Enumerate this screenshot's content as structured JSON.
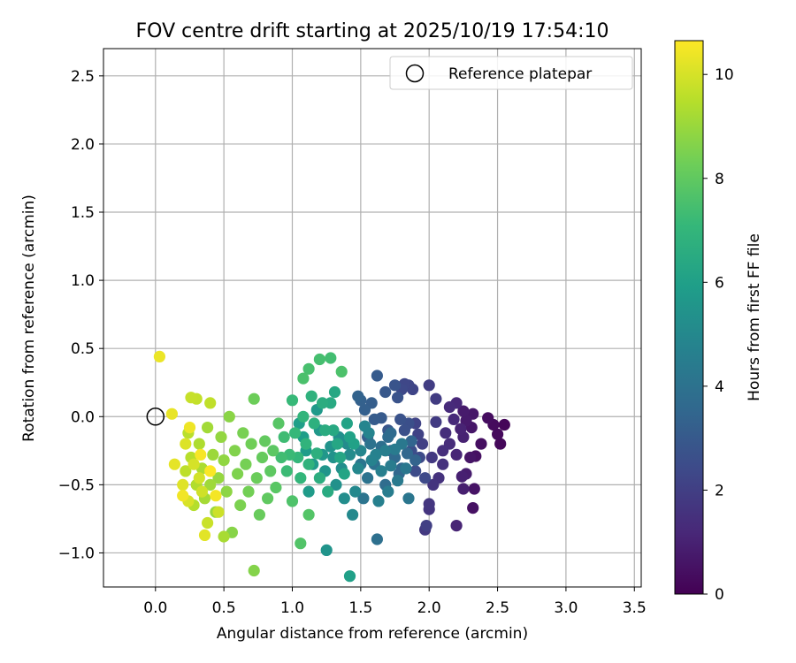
{
  "chart_data": {
    "type": "scatter",
    "title": "FOV centre drift starting at 2025/10/19 17:54:10",
    "xlabel": "Angular distance from reference (arcmin)",
    "ylabel": "Rotation from reference (arcmin)",
    "xlim": [
      -0.38,
      3.55
    ],
    "ylim": [
      -1.25,
      2.7
    ],
    "x_ticks": [
      0.0,
      0.5,
      1.0,
      1.5,
      2.0,
      2.5,
      3.0,
      3.5
    ],
    "x_tick_labels": [
      "0.0",
      "0.5",
      "1.0",
      "1.5",
      "2.0",
      "2.5",
      "3.0",
      "3.5"
    ],
    "y_ticks": [
      -1.0,
      -0.5,
      0.0,
      0.5,
      1.0,
      1.5,
      2.0,
      2.5
    ],
    "y_tick_labels": [
      "−1.0",
      "−0.5",
      "0.0",
      "0.5",
      "1.0",
      "1.5",
      "2.0",
      "2.5"
    ],
    "grid": true,
    "legend": {
      "position": "top-right",
      "label": "Reference platepar"
    },
    "reference_point": {
      "x": 0.0,
      "y": 0.0
    },
    "colorbar": {
      "label": "Hours from first FF file",
      "range": [
        0,
        10.65
      ],
      "ticks": [
        0,
        2,
        4,
        6,
        8,
        10
      ],
      "tick_labels": [
        "0",
        "2",
        "4",
        "6",
        "8",
        "10"
      ],
      "colormap": "viridis",
      "colors": [
        "#440154",
        "#482878",
        "#3e4989",
        "#31688e",
        "#26828e",
        "#1f9e89",
        "#35b779",
        "#6ece58",
        "#b5de2b",
        "#fde725"
      ]
    },
    "points": [
      [
        2.55,
        -0.06,
        0.15
      ],
      [
        2.52,
        -0.2,
        0.2
      ],
      [
        2.5,
        -0.13,
        0.25
      ],
      [
        2.47,
        -0.06,
        0.3
      ],
      [
        2.43,
        -0.01,
        0.35
      ],
      [
        2.38,
        -0.2,
        0.4
      ],
      [
        2.34,
        -0.29,
        0.45
      ],
      [
        2.32,
        -0.67,
        0.5
      ],
      [
        2.33,
        -0.53,
        0.55
      ],
      [
        2.3,
        -0.3,
        0.6
      ],
      [
        2.31,
        -0.08,
        0.65
      ],
      [
        2.32,
        0.02,
        0.7
      ],
      [
        2.27,
        -0.03,
        0.75
      ],
      [
        2.25,
        0.04,
        0.8
      ],
      [
        2.27,
        -0.42,
        0.85
      ],
      [
        2.25,
        -0.53,
        0.9
      ],
      [
        2.24,
        -0.44,
        0.95
      ],
      [
        2.25,
        -0.15,
        1.0
      ],
      [
        2.23,
        -0.09,
        1.05
      ],
      [
        2.2,
        -0.8,
        1.1
      ],
      [
        2.2,
        -0.28,
        1.15
      ],
      [
        2.2,
        0.1,
        1.2
      ],
      [
        2.18,
        -0.02,
        1.25
      ],
      [
        2.15,
        0.07,
        1.3
      ],
      [
        2.15,
        -0.2,
        1.35
      ],
      [
        2.12,
        -0.12,
        1.4
      ],
      [
        2.1,
        -0.25,
        1.45
      ],
      [
        2.1,
        -0.35,
        1.5
      ],
      [
        2.07,
        -0.45,
        1.55
      ],
      [
        2.03,
        -0.5,
        1.6
      ],
      [
        2.0,
        -0.68,
        1.65
      ],
      [
        2.0,
        -0.64,
        1.7
      ],
      [
        1.97,
        -0.83,
        1.75
      ],
      [
        2.02,
        -0.3,
        1.8
      ],
      [
        2.05,
        -0.04,
        1.85
      ],
      [
        2.05,
        0.13,
        1.9
      ],
      [
        2.0,
        0.23,
        1.95
      ],
      [
        1.98,
        -0.8,
        2.0
      ],
      [
        1.95,
        -0.2,
        2.05
      ],
      [
        1.92,
        -0.13,
        2.1
      ],
      [
        1.9,
        -0.05,
        2.15
      ],
      [
        1.88,
        0.2,
        2.2
      ],
      [
        1.85,
        0.23,
        2.25
      ],
      [
        1.82,
        0.24,
        2.3
      ],
      [
        1.8,
        0.2,
        2.35
      ],
      [
        1.97,
        -0.45,
        2.4
      ],
      [
        1.93,
        -0.3,
        2.45
      ],
      [
        1.9,
        -0.4,
        2.5
      ],
      [
        1.87,
        -0.25,
        2.55
      ],
      [
        1.85,
        -0.05,
        2.6
      ],
      [
        1.82,
        -0.1,
        2.65
      ],
      [
        1.79,
        -0.02,
        2.7
      ],
      [
        1.77,
        0.14,
        2.75
      ],
      [
        1.75,
        0.23,
        2.8
      ],
      [
        1.72,
        -0.25,
        2.85
      ],
      [
        1.7,
        -0.1,
        2.9
      ],
      [
        1.68,
        0.18,
        2.95
      ],
      [
        1.65,
        -0.01,
        3.0
      ],
      [
        1.62,
        0.3,
        3.05
      ],
      [
        1.6,
        -0.02,
        3.1
      ],
      [
        1.58,
        0.1,
        3.15
      ],
      [
        1.55,
        -0.15,
        3.2
      ],
      [
        1.53,
        0.05,
        3.25
      ],
      [
        1.5,
        0.12,
        3.3
      ],
      [
        1.48,
        0.15,
        3.35
      ],
      [
        1.9,
        -0.32,
        3.4
      ],
      [
        1.87,
        -0.18,
        3.45
      ],
      [
        1.84,
        -0.27,
        3.5
      ],
      [
        1.8,
        -0.38,
        3.55
      ],
      [
        1.78,
        -0.42,
        3.6
      ],
      [
        1.75,
        -0.3,
        3.65
      ],
      [
        1.72,
        -0.12,
        3.7
      ],
      [
        1.7,
        -0.15,
        3.75
      ],
      [
        1.68,
        -0.5,
        3.8
      ],
      [
        1.65,
        -0.22,
        3.85
      ],
      [
        1.62,
        -0.9,
        3.9
      ],
      [
        1.6,
        -0.35,
        3.95
      ],
      [
        1.57,
        -0.2,
        4.0
      ],
      [
        1.55,
        -0.45,
        4.05
      ],
      [
        1.52,
        -0.6,
        4.1
      ],
      [
        1.5,
        -0.35,
        4.15
      ],
      [
        1.85,
        -0.6,
        4.2
      ],
      [
        1.83,
        -0.38,
        4.25
      ],
      [
        1.8,
        -0.2,
        4.3
      ],
      [
        1.77,
        -0.47,
        4.35
      ],
      [
        1.75,
        -0.24,
        4.4
      ],
      [
        1.72,
        -0.36,
        4.45
      ],
      [
        1.7,
        -0.55,
        4.5
      ],
      [
        1.68,
        -0.25,
        4.55
      ],
      [
        1.65,
        -0.4,
        4.6
      ],
      [
        1.63,
        -0.62,
        4.65
      ],
      [
        1.61,
        -0.28,
        4.7
      ],
      [
        1.58,
        -0.32,
        4.75
      ],
      [
        1.56,
        -0.12,
        4.8
      ],
      [
        1.53,
        -0.07,
        4.85
      ],
      [
        1.5,
        -0.25,
        4.9
      ],
      [
        1.48,
        -0.38,
        4.95
      ],
      [
        1.46,
        -0.55,
        5.0
      ],
      [
        1.44,
        -0.72,
        5.05
      ],
      [
        1.42,
        -0.28,
        5.1
      ],
      [
        1.4,
        -0.2,
        5.15
      ],
      [
        1.38,
        -0.6,
        5.2
      ],
      [
        1.36,
        -0.38,
        5.25
      ],
      [
        1.34,
        -0.15,
        5.3
      ],
      [
        1.32,
        -0.5,
        5.35
      ],
      [
        1.3,
        -0.3,
        5.4
      ],
      [
        1.28,
        -0.22,
        5.45
      ],
      [
        1.25,
        -0.98,
        5.5
      ],
      [
        1.24,
        -0.4,
        5.55
      ],
      [
        1.22,
        -0.28,
        5.6
      ],
      [
        1.2,
        -0.1,
        5.65
      ],
      [
        1.18,
        0.05,
        5.7
      ],
      [
        1.15,
        -0.35,
        5.75
      ],
      [
        1.12,
        -0.55,
        5.8
      ],
      [
        1.1,
        -0.25,
        5.85
      ],
      [
        1.08,
        -0.15,
        5.9
      ],
      [
        1.05,
        -0.05,
        5.95
      ],
      [
        1.42,
        -1.17,
        6.0
      ],
      [
        1.45,
        -0.2,
        6.05
      ],
      [
        1.42,
        -0.15,
        6.1
      ],
      [
        1.4,
        -0.05,
        6.15
      ],
      [
        1.38,
        -0.42,
        6.2
      ],
      [
        1.35,
        -0.3,
        6.25
      ],
      [
        1.33,
        -0.2,
        6.3
      ],
      [
        1.31,
        0.18,
        6.35
      ],
      [
        1.3,
        -0.1,
        6.4
      ],
      [
        1.28,
        0.1,
        6.45
      ],
      [
        1.26,
        -0.55,
        6.5
      ],
      [
        1.24,
        -0.1,
        6.55
      ],
      [
        1.22,
        0.1,
        6.6
      ],
      [
        1.2,
        -0.45,
        6.65
      ],
      [
        1.18,
        -0.27,
        6.7
      ],
      [
        1.16,
        -0.05,
        6.75
      ],
      [
        1.14,
        0.15,
        6.8
      ],
      [
        1.12,
        -0.35,
        6.85
      ],
      [
        1.1,
        -0.2,
        6.9
      ],
      [
        1.08,
        0.0,
        6.95
      ],
      [
        1.06,
        -0.45,
        7.0
      ],
      [
        1.04,
        -0.3,
        7.05
      ],
      [
        1.02,
        -0.12,
        7.1
      ],
      [
        1.0,
        0.12,
        7.15
      ],
      [
        0.98,
        -0.28,
        7.2
      ],
      [
        0.96,
        -0.4,
        7.25
      ],
      [
        0.94,
        -0.15,
        7.3
      ],
      [
        0.92,
        -0.3,
        7.35
      ],
      [
        1.28,
        0.43,
        7.4
      ],
      [
        1.2,
        0.42,
        7.45
      ],
      [
        1.12,
        0.35,
        7.5
      ],
      [
        1.08,
        0.28,
        7.55
      ],
      [
        1.36,
        0.33,
        7.6
      ],
      [
        1.0,
        -0.62,
        7.65
      ],
      [
        1.06,
        -0.93,
        7.7
      ],
      [
        1.12,
        -0.72,
        7.75
      ],
      [
        0.9,
        -0.05,
        7.8
      ],
      [
        0.88,
        -0.52,
        7.85
      ],
      [
        0.86,
        -0.25,
        7.9
      ],
      [
        0.84,
        -0.4,
        7.95
      ],
      [
        0.82,
        -0.6,
        8.0
      ],
      [
        0.8,
        -0.18,
        8.05
      ],
      [
        0.78,
        -0.3,
        8.1
      ],
      [
        0.76,
        -0.72,
        8.15
      ],
      [
        0.74,
        -0.45,
        8.2
      ],
      [
        0.72,
        0.13,
        8.25
      ],
      [
        0.7,
        -0.2,
        8.3
      ],
      [
        0.68,
        -0.55,
        8.35
      ],
      [
        0.66,
        -0.35,
        8.4
      ],
      [
        0.64,
        -0.12,
        8.45
      ],
      [
        0.62,
        -0.65,
        8.5
      ],
      [
        0.6,
        -0.42,
        8.55
      ],
      [
        0.58,
        -0.25,
        8.6
      ],
      [
        0.72,
        -1.13,
        8.65
      ],
      [
        0.56,
        -0.85,
        8.7
      ],
      [
        0.54,
        0.0,
        8.75
      ],
      [
        0.52,
        -0.55,
        8.8
      ],
      [
        0.5,
        -0.32,
        8.85
      ],
      [
        0.48,
        -0.15,
        8.9
      ],
      [
        0.46,
        -0.45,
        8.95
      ],
      [
        0.44,
        -0.7,
        9.0
      ],
      [
        0.42,
        -0.28,
        9.05
      ],
      [
        0.4,
        -0.5,
        9.1
      ],
      [
        0.38,
        -0.08,
        9.15
      ],
      [
        0.36,
        -0.6,
        9.2
      ],
      [
        0.5,
        -0.88,
        9.25
      ],
      [
        0.34,
        -0.38,
        9.3
      ],
      [
        0.32,
        -0.2,
        9.35
      ],
      [
        0.3,
        -0.5,
        9.4
      ],
      [
        0.28,
        -0.65,
        9.45
      ],
      [
        0.26,
        -0.3,
        9.5
      ],
      [
        0.24,
        -0.12,
        9.55
      ],
      [
        0.22,
        -0.4,
        9.6
      ],
      [
        0.4,
        0.1,
        9.65
      ],
      [
        0.3,
        0.13,
        9.7
      ],
      [
        0.26,
        0.14,
        9.75
      ],
      [
        0.38,
        -0.78,
        9.8
      ],
      [
        0.46,
        -0.7,
        9.85
      ],
      [
        0.34,
        -0.55,
        9.9
      ],
      [
        0.32,
        -0.45,
        9.95
      ],
      [
        0.28,
        -0.35,
        10.0
      ],
      [
        0.24,
        -0.62,
        10.05
      ],
      [
        0.22,
        -0.2,
        10.1
      ],
      [
        0.2,
        -0.5,
        10.15
      ],
      [
        0.36,
        -0.87,
        10.2
      ],
      [
        0.14,
        -0.35,
        10.25
      ],
      [
        0.12,
        0.02,
        10.3
      ],
      [
        0.03,
        0.44,
        10.35
      ],
      [
        0.25,
        -0.08,
        10.4
      ],
      [
        0.2,
        -0.58,
        10.45
      ],
      [
        0.44,
        -0.58,
        10.5
      ],
      [
        0.33,
        -0.28,
        10.55
      ],
      [
        0.4,
        -0.4,
        10.6
      ]
    ]
  }
}
